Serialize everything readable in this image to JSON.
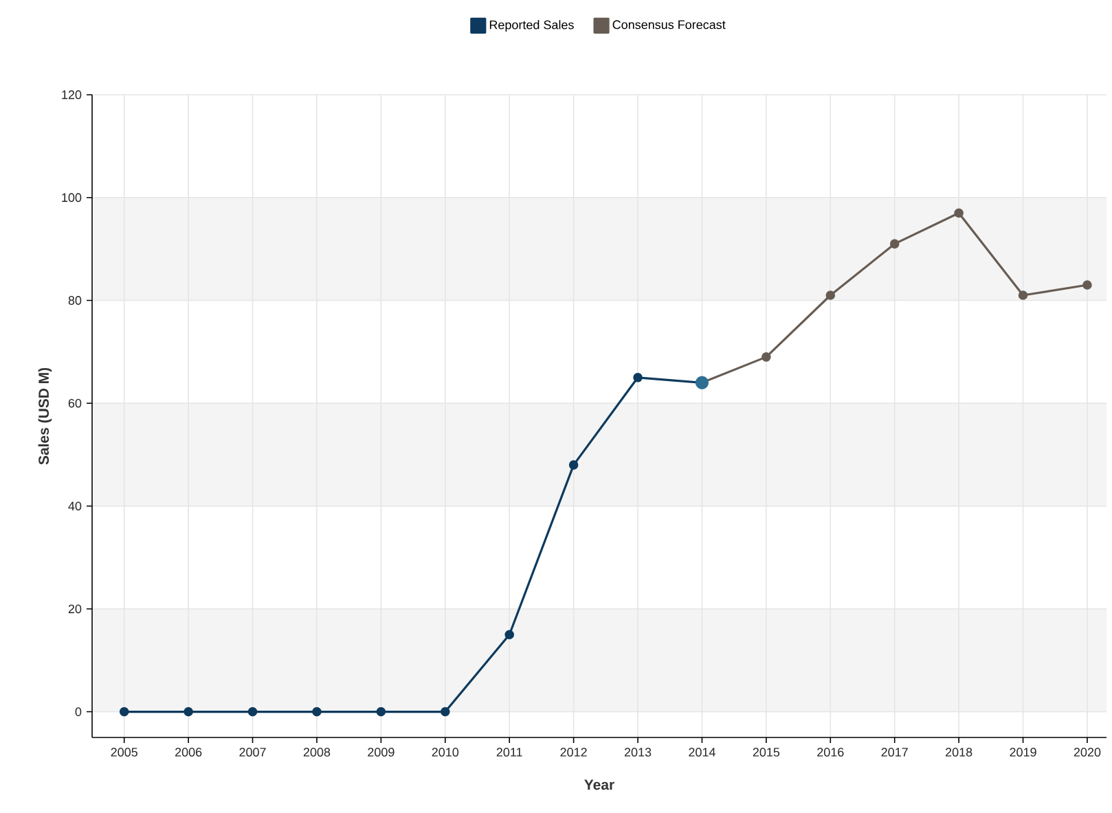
{
  "chart_data": {
    "type": "line",
    "xlabel": "Year",
    "ylabel": "Sales (USD M)",
    "series": [
      {
        "name": "Reported Sales",
        "color": "#0d3a5e",
        "x": [
          2005,
          2006,
          2007,
          2008,
          2009,
          2010,
          2011,
          2012,
          2013,
          2014
        ],
        "values": [
          0,
          0,
          0,
          0,
          0,
          0,
          15,
          48,
          65,
          64
        ]
      },
      {
        "name": "Consensus Forecast",
        "color": "#675c53",
        "x": [
          2014,
          2015,
          2016,
          2017,
          2018,
          2019,
          2020
        ],
        "values": [
          64,
          69,
          81,
          91,
          97,
          81,
          83
        ]
      },
      {
        "type": "scatter",
        "color": "#2d6e93",
        "x": [
          2014
        ],
        "values": [
          64
        ]
      }
    ],
    "xlim": [
      2004.5,
      2020.3
    ],
    "xticks": [
      2005,
      2006,
      2007,
      2008,
      2009,
      2010,
      2011,
      2012,
      2013,
      2014,
      2015,
      2016,
      2017,
      2018,
      2019,
      2020
    ],
    "ylim": [
      -5,
      120
    ],
    "yticks": [
      0,
      20,
      40,
      60,
      80,
      100,
      120
    ],
    "bands": [
      {
        "axis": "y",
        "from": 0,
        "to": 20,
        "color": "#f4f4f4"
      },
      {
        "axis": "y",
        "from": 40,
        "to": 60,
        "color": "#f4f4f4"
      },
      {
        "axis": "y",
        "from": 80,
        "to": 100,
        "color": "#f4f4f4"
      }
    ],
    "grid": true,
    "legend": "top",
    "marker": "circle",
    "line_style": "solid"
  }
}
